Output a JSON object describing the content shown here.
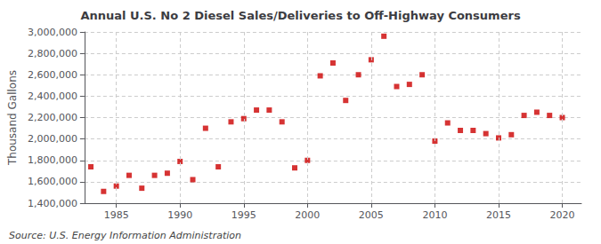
{
  "chart_data": {
    "type": "scatter",
    "title": "Annual U.S. No 2 Diesel Sales/Deliveries to Off-Highway Consumers",
    "ylabel": "Thousand Gallons",
    "annotations": [
      "Source: U.S. Energy Information Administration"
    ],
    "x": [
      1983,
      1984,
      1985,
      1986,
      1987,
      1988,
      1989,
      1990,
      1991,
      1992,
      1993,
      1994,
      1995,
      1996,
      1997,
      1998,
      1999,
      2000,
      2001,
      2002,
      2003,
      2004,
      2005,
      2006,
      2007,
      2008,
      2009,
      2010,
      2011,
      2012,
      2013,
      2014,
      2015,
      2016,
      2017,
      2018,
      2019,
      2020
    ],
    "values": [
      1740000,
      1510000,
      1560000,
      1660000,
      1540000,
      1660000,
      1680000,
      1790000,
      1620000,
      2100000,
      1740000,
      2160000,
      2190000,
      2270000,
      2270000,
      2160000,
      1730000,
      1800000,
      2590000,
      2710000,
      2360000,
      2600000,
      2740000,
      2960000,
      2490000,
      2510000,
      2600000,
      1980000,
      2150000,
      2080000,
      2080000,
      2050000,
      2010000,
      2040000,
      2220000,
      2250000,
      2220000,
      2200000
    ],
    "color": "#cc0000",
    "marker": "square",
    "xlim": [
      1982.5,
      2021.5
    ],
    "xticks": [
      1985,
      1990,
      1995,
      2000,
      2005,
      2010,
      2015,
      2020
    ],
    "ylim": [
      1400000,
      3000000
    ],
    "yticks": [
      {
        "value": 1400000,
        "label": "1,400,000"
      },
      {
        "value": 1600000,
        "label": "1,600,000"
      },
      {
        "value": 1800000,
        "label": "1,800,000"
      },
      {
        "value": 2000000,
        "label": "2,000,000"
      },
      {
        "value": 2200000,
        "label": "2,200,000"
      },
      {
        "value": 2400000,
        "label": "2,400,000"
      },
      {
        "value": 2600000,
        "label": "2,600,000"
      },
      {
        "value": 2800000,
        "label": "2,800,000"
      },
      {
        "value": 3000000,
        "label": "3,000,000"
      }
    ],
    "grid": true
  }
}
